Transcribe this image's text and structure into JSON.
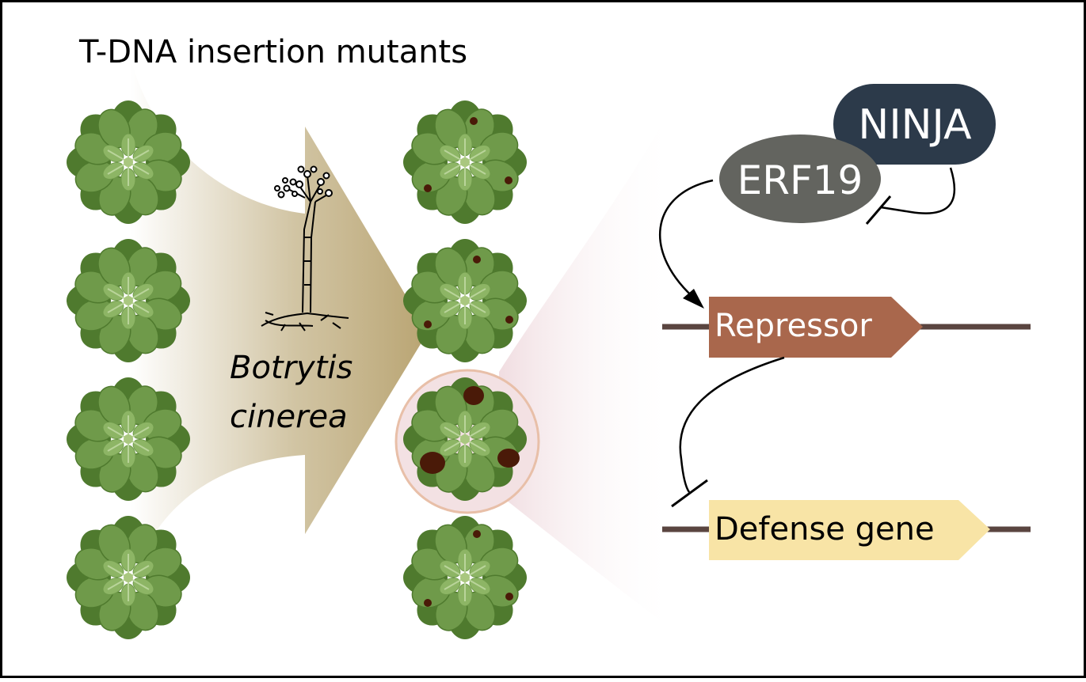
{
  "title": "T-DNA insertion mutants",
  "pathogen": {
    "line1": "Botrytis",
    "line2": "cinerea"
  },
  "proteins": {
    "erf19": "ERF19",
    "ninja": "NINJA"
  },
  "genes": {
    "repressor": "Repressor",
    "defense": "Defense gene"
  },
  "colors": {
    "leaf": "#6f9a4a",
    "leaf_dark": "#4f7a2e",
    "leaf_light": "#8db565",
    "arrow_tan": "#c2b185",
    "lesion": "#4a1a08",
    "ninja_fill": "#2c3a4a",
    "erf19_fill": "#63645f",
    "repressor_fill": "#a9674c",
    "defense_fill": "#f8e4a6",
    "dna_line": "#5a4540",
    "highlight_circle": "#f3e1e3"
  },
  "plants": {
    "left_column_count": 4,
    "right_column_count": 4,
    "highlighted_index": 2
  }
}
